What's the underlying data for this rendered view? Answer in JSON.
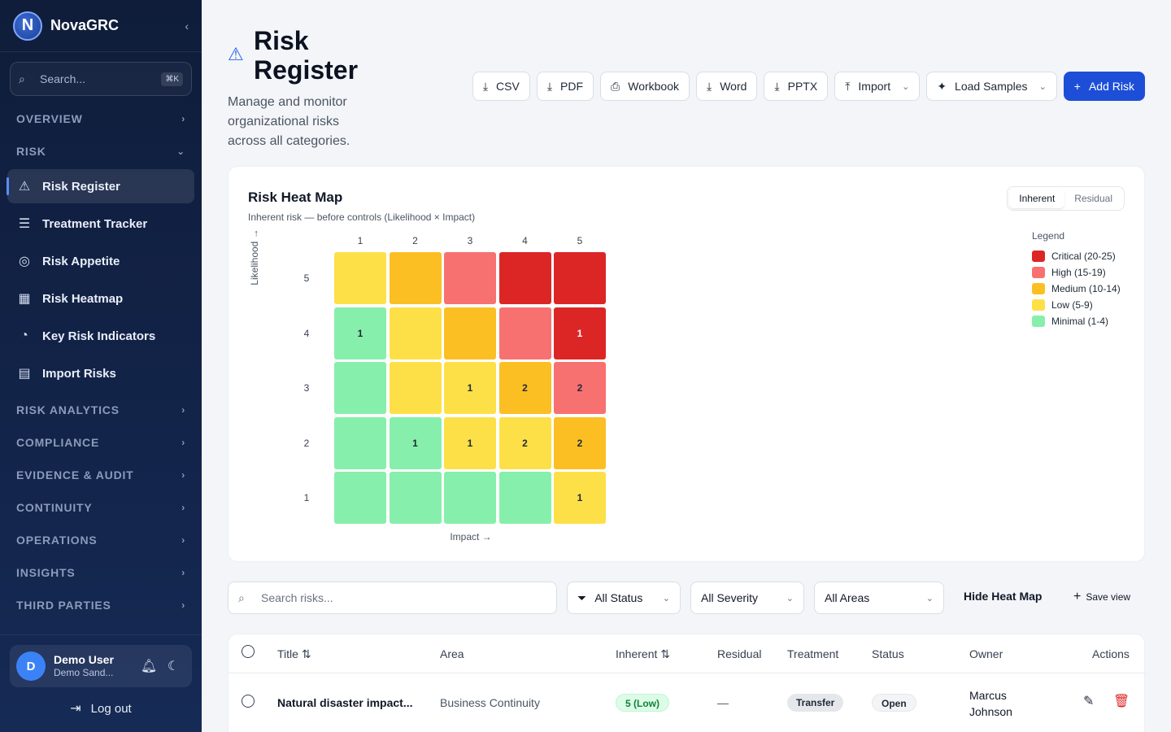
{
  "app": {
    "name": "NovaGRC",
    "logo_letter": "N",
    "collapse_icon": "chevron-left-icon"
  },
  "sidebar": {
    "search_placeholder": "Search...",
    "search_shortcut": "⌘K",
    "sections": {
      "overview": "OVERVIEW",
      "risk": "RISK",
      "risk_analytics": "RISK ANALYTICS",
      "compliance": "COMPLIANCE",
      "evidence_audit": "EVIDENCE & AUDIT",
      "continuity": "CONTINUITY",
      "operations": "OPERATIONS",
      "insights": "INSIGHTS",
      "third_parties": "THIRD PARTIES"
    },
    "risk_items": [
      {
        "label": "Risk Register",
        "icon": "warning-triangle-icon",
        "active": true
      },
      {
        "label": "Treatment Tracker",
        "icon": "checklist-icon"
      },
      {
        "label": "Risk Appetite",
        "icon": "target-icon"
      },
      {
        "label": "Risk Heatmap",
        "icon": "grid-icon"
      },
      {
        "label": "Key Risk Indicators",
        "icon": "gauge-icon"
      },
      {
        "label": "Import Risks",
        "icon": "document-icon"
      }
    ],
    "user": {
      "initial": "D",
      "name": "Demo User",
      "org": "Demo Sand..."
    },
    "logout_label": "Log out"
  },
  "page": {
    "title": "Risk Register",
    "subtitle": "Manage and monitor organizational risks across all categories.",
    "actions": {
      "csv": "CSV",
      "pdf": "PDF",
      "workbook": "Workbook",
      "word": "Word",
      "pptx": "PPTX",
      "import": "Import",
      "load_samples": "Load Samples",
      "add_risk": "Add Risk"
    }
  },
  "heatmap": {
    "title": "Risk Heat Map",
    "subtitle": "Inherent risk — before controls (Likelihood × Impact)",
    "toggle": {
      "inherent": "Inherent",
      "residual": "Residual",
      "selected": "inherent"
    },
    "y_axis_label": "Likelihood →",
    "x_axis_label": "Impact →",
    "impact_ticks": [
      "1",
      "2",
      "3",
      "4",
      "5"
    ],
    "likelihood_ticks": [
      "5",
      "4",
      "3",
      "2",
      "1"
    ],
    "rows": [
      {
        "likelihood": 5,
        "cells": [
          {
            "level": "low",
            "count": ""
          },
          {
            "level": "medium",
            "count": ""
          },
          {
            "level": "high",
            "count": ""
          },
          {
            "level": "critical",
            "count": ""
          },
          {
            "level": "critical",
            "count": ""
          }
        ]
      },
      {
        "likelihood": 4,
        "cells": [
          {
            "level": "minimal",
            "count": "1"
          },
          {
            "level": "low",
            "count": ""
          },
          {
            "level": "medium",
            "count": ""
          },
          {
            "level": "high",
            "count": ""
          },
          {
            "level": "critical",
            "count": "1"
          }
        ]
      },
      {
        "likelihood": 3,
        "cells": [
          {
            "level": "minimal",
            "count": ""
          },
          {
            "level": "low",
            "count": ""
          },
          {
            "level": "low",
            "count": "1"
          },
          {
            "level": "medium",
            "count": "2"
          },
          {
            "level": "high",
            "count": "2"
          }
        ]
      },
      {
        "likelihood": 2,
        "cells": [
          {
            "level": "minimal",
            "count": ""
          },
          {
            "level": "minimal",
            "count": "1"
          },
          {
            "level": "low",
            "count": "1"
          },
          {
            "level": "low",
            "count": "2"
          },
          {
            "level": "medium",
            "count": "2"
          }
        ]
      },
      {
        "likelihood": 1,
        "cells": [
          {
            "level": "minimal",
            "count": ""
          },
          {
            "level": "minimal",
            "count": ""
          },
          {
            "level": "minimal",
            "count": ""
          },
          {
            "level": "minimal",
            "count": ""
          },
          {
            "level": "low",
            "count": "1"
          }
        ]
      }
    ],
    "colors": {
      "critical": "#dc2626",
      "high": "#f87171",
      "medium": "#fbbf24",
      "low": "#fde047",
      "minimal": "#86efac"
    },
    "legend": {
      "title": "Legend",
      "items": [
        {
          "level": "critical",
          "label": "Critical (20-25)"
        },
        {
          "level": "high",
          "label": "High (15-19)"
        },
        {
          "level": "medium",
          "label": "Medium (10-14)"
        },
        {
          "level": "low",
          "label": "Low (5-9)"
        },
        {
          "level": "minimal",
          "label": "Minimal (1-4)"
        }
      ]
    }
  },
  "filters": {
    "search_placeholder": "Search risks...",
    "status": "All Status",
    "severity": "All Severity",
    "areas": "All Areas",
    "hide_heatmap": "Hide Heat Map",
    "save_view": "Save view"
  },
  "table": {
    "headers": {
      "title": "Title",
      "area": "Area",
      "inherent": "Inherent",
      "residual": "Residual",
      "treatment": "Treatment",
      "status": "Status",
      "owner": "Owner",
      "actions": "Actions"
    },
    "rows": [
      {
        "title": "Natural disaster impact...",
        "area": "Business Continuity",
        "inherent": "5 (Low)",
        "residual": "—",
        "treatment": "Transfer",
        "status": "Open",
        "owner_first": "Marcus",
        "owner_last": "Johnson"
      }
    ]
  }
}
